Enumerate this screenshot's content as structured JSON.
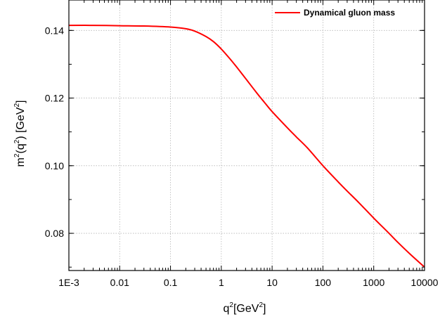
{
  "chart_data": {
    "type": "line",
    "xscale": "log",
    "xlim": [
      0.001,
      10000
    ],
    "ylim": [
      0.069,
      0.149
    ],
    "xticks": [
      0.001,
      0.01,
      0.1,
      1,
      10,
      100,
      1000,
      10000
    ],
    "xtick_labels": [
      "1E-3",
      "0.01",
      "0.1",
      "1",
      "10",
      "100",
      "1000",
      "10000"
    ],
    "yticks": [
      0.08,
      0.1,
      0.12,
      0.14
    ],
    "ytick_labels": [
      "0.08",
      "0.10",
      "0.12",
      "0.14"
    ],
    "xlabel": {
      "base": "q",
      "sup": "2",
      "rest": "[GeV",
      "sup2": "2",
      "close": "]"
    },
    "ylabel": {
      "m": "m",
      "sup1": "2",
      "mid": "(q",
      "sup2": "2",
      "close": ") [GeV",
      "sup3": "2",
      "end": "]"
    },
    "grid": true,
    "legend_position": "top-right",
    "series": [
      {
        "name": "Dynamical gluon mass",
        "color": "#ff0000",
        "x": [
          0.001,
          0.003,
          0.01,
          0.03,
          0.1,
          0.2,
          0.3,
          0.5,
          0.7,
          1,
          1.5,
          2,
          3,
          5,
          7,
          10,
          20,
          30,
          50,
          100,
          200,
          300,
          500,
          1000,
          2000,
          3000,
          5000,
          10000
        ],
        "y": [
          0.1415,
          0.1415,
          0.1414,
          0.1413,
          0.141,
          0.1405,
          0.1398,
          0.1382,
          0.1367,
          0.1345,
          0.1315,
          0.1292,
          0.1258,
          0.1215,
          0.1188,
          0.116,
          0.1112,
          0.1085,
          0.1052,
          0.1,
          0.0952,
          0.0925,
          0.0892,
          0.0845,
          0.08,
          0.0773,
          0.0741,
          0.07
        ]
      }
    ]
  }
}
